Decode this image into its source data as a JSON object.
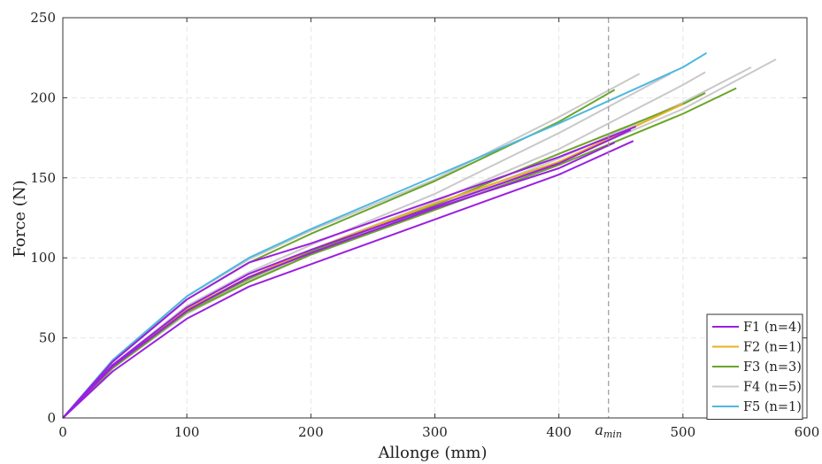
{
  "chart_data": {
    "type": "line",
    "xlabel": "Allonge (mm)",
    "ylabel": "Force (N)",
    "xlim": [
      0,
      600
    ],
    "ylim": [
      0,
      250
    ],
    "xticks": [
      0,
      100,
      200,
      300,
      400,
      500,
      600
    ],
    "yticks": [
      0,
      50,
      100,
      150,
      200,
      250
    ],
    "grid": true,
    "legend_position": "bottom-right",
    "legend": [
      {
        "label": "F1 (n=4)",
        "color": "#9b1fe0"
      },
      {
        "label": "F2 (n=1)",
        "color": "#e8b020"
      },
      {
        "label": "F3 (n=3)",
        "color": "#6aa528"
      },
      {
        "label": "F4 (n=5)",
        "color": "#c9c9c9"
      },
      {
        "label": "F5 (n=1)",
        "color": "#4db8e0"
      }
    ],
    "annotation": {
      "text_base": "a",
      "text_sub": "min",
      "x": 440,
      "style": "dashed vertical line"
    },
    "series": [
      {
        "group": "F4",
        "color": "#c9c9c9",
        "x": [
          0,
          40,
          100,
          150,
          200,
          300,
          400,
          465
        ],
        "y": [
          0,
          36,
          76,
          99,
          117,
          149,
          188,
          215
        ]
      },
      {
        "group": "F4",
        "color": "#c9c9c9",
        "x": [
          0,
          40,
          100,
          150,
          200,
          300,
          400,
          490
        ],
        "y": [
          0,
          33,
          70,
          91,
          108,
          140,
          178,
          215
        ]
      },
      {
        "group": "F4",
        "color": "#c9c9c9",
        "x": [
          0,
          40,
          100,
          150,
          200,
          300,
          400,
          500,
          518
        ],
        "y": [
          0,
          32,
          68,
          88,
          105,
          135,
          168,
          208,
          216
        ]
      },
      {
        "group": "F4",
        "color": "#c9c9c9",
        "x": [
          0,
          40,
          100,
          150,
          200,
          300,
          400,
          500,
          555
        ],
        "y": [
          0,
          31,
          66,
          86,
          103,
          132,
          162,
          197,
          219
        ]
      },
      {
        "group": "F4",
        "color": "#c9c9c9",
        "x": [
          0,
          40,
          100,
          150,
          200,
          300,
          400,
          500,
          575
        ],
        "y": [
          0,
          31,
          65,
          85,
          102,
          130,
          160,
          193,
          224
        ]
      },
      {
        "group": "F3",
        "color": "#6aa528",
        "x": [
          0,
          40,
          100,
          150,
          200,
          300,
          400,
          445
        ],
        "y": [
          0,
          35,
          74,
          97,
          115,
          148,
          185,
          205
        ]
      },
      {
        "group": "F3",
        "color": "#6aa528",
        "x": [
          0,
          40,
          100,
          150,
          200,
          300,
          400,
          500,
          518
        ],
        "y": [
          0,
          32,
          67,
          87,
          104,
          133,
          165,
          196,
          203
        ]
      },
      {
        "group": "F3",
        "color": "#6aa528",
        "x": [
          0,
          40,
          100,
          150,
          200,
          300,
          400,
          500,
          543
        ],
        "y": [
          0,
          31,
          66,
          85,
          102,
          130,
          158,
          190,
          206
        ]
      },
      {
        "group": "F2",
        "color": "#e8b020",
        "x": [
          0,
          40,
          100,
          150,
          200,
          300,
          400,
          500
        ],
        "y": [
          0,
          32,
          68,
          88,
          105,
          134,
          160,
          196
        ]
      },
      {
        "group": "F5",
        "color": "#4db8e0",
        "x": [
          0,
          40,
          100,
          150,
          200,
          300,
          400,
          500,
          519
        ],
        "y": [
          0,
          36,
          76,
          100,
          118,
          151,
          184,
          219,
          228
        ]
      },
      {
        "group": "F1",
        "color": "#9b1fe0",
        "x": [
          0,
          40,
          100,
          150,
          200,
          300,
          400,
          462
        ],
        "y": [
          0,
          35,
          74,
          97,
          109,
          136,
          163,
          182
        ]
      },
      {
        "group": "F1",
        "color": "#9b1fe0",
        "x": [
          0,
          40,
          100,
          150,
          200,
          300,
          400,
          458
        ],
        "y": [
          0,
          33,
          69,
          90,
          105,
          132,
          159,
          180
        ]
      },
      {
        "group": "F1",
        "color": "#9b1fe0",
        "x": [
          0,
          40,
          100,
          150,
          200,
          300,
          400,
          445
        ],
        "y": [
          0,
          32,
          67,
          88,
          103,
          131,
          156,
          172
        ]
      },
      {
        "group": "F1",
        "color": "#9b1fe0",
        "x": [
          0,
          40,
          100,
          150,
          200,
          300,
          400,
          460
        ],
        "y": [
          0,
          29,
          62,
          82,
          96,
          124,
          152,
          173
        ]
      }
    ]
  }
}
